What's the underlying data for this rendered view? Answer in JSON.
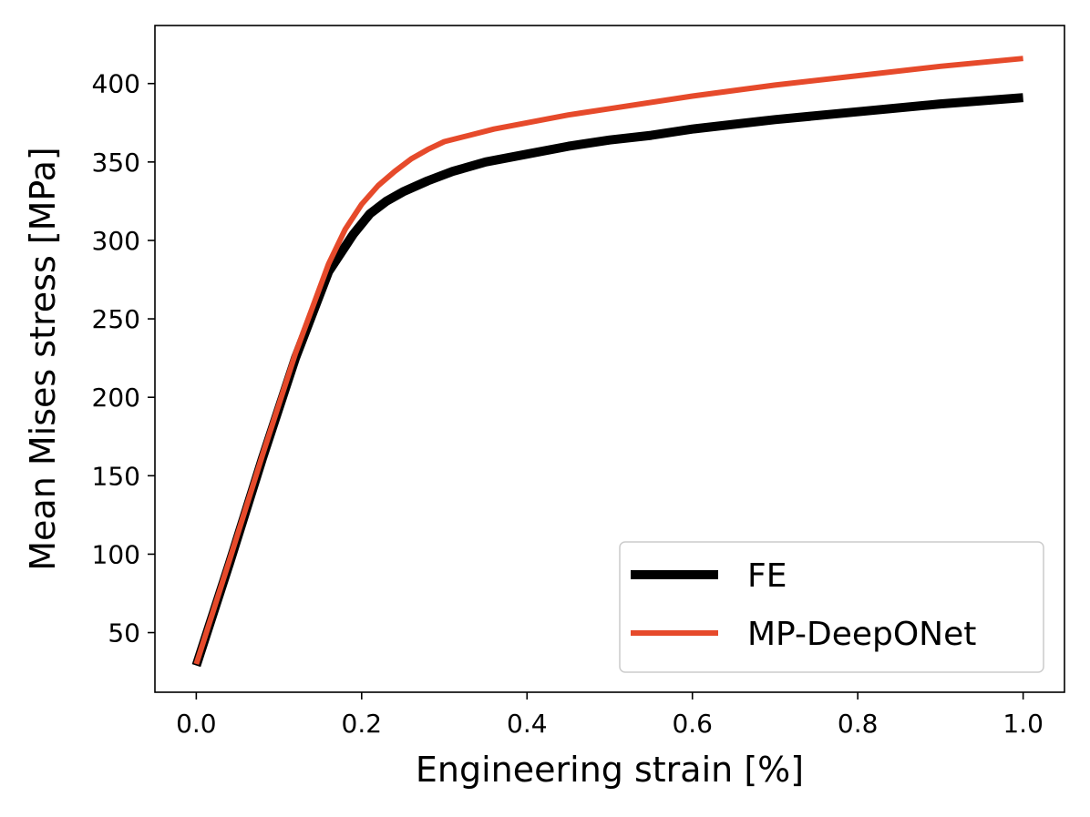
{
  "chart_data": {
    "type": "line",
    "title": "",
    "xlabel": "Engineering strain [%]",
    "ylabel": "Mean Mises stress [MPa]",
    "xlim": [
      -0.05,
      1.05
    ],
    "ylim": [
      12,
      437
    ],
    "xticks": [
      0.0,
      0.2,
      0.4,
      0.6,
      0.8,
      1.0
    ],
    "xtick_labels": [
      "0.0",
      "0.2",
      "0.4",
      "0.6",
      "0.8",
      "1.0"
    ],
    "yticks": [
      50,
      100,
      150,
      200,
      250,
      300,
      350,
      400
    ],
    "ytick_labels": [
      "50",
      "100",
      "150",
      "200",
      "250",
      "300",
      "350",
      "400"
    ],
    "grid": false,
    "legend_position": "bottom-right",
    "series": [
      {
        "name": "FE",
        "color": "#000000",
        "x": [
          0.0,
          0.04,
          0.08,
          0.12,
          0.16,
          0.19,
          0.21,
          0.23,
          0.25,
          0.28,
          0.31,
          0.35,
          0.4,
          0.45,
          0.5,
          0.55,
          0.6,
          0.7,
          0.8,
          0.9,
          1.0
        ],
        "y": [
          29,
          94,
          161,
          225,
          280,
          304,
          317,
          325,
          331,
          338,
          344,
          350,
          355,
          360,
          364,
          367,
          371,
          377,
          382,
          387,
          391
        ]
      },
      {
        "name": "MP-DeepONet",
        "color": "#E64A2B",
        "x": [
          0.0,
          0.04,
          0.08,
          0.12,
          0.16,
          0.18,
          0.2,
          0.22,
          0.24,
          0.26,
          0.28,
          0.3,
          0.33,
          0.36,
          0.4,
          0.45,
          0.5,
          0.6,
          0.7,
          0.8,
          0.9,
          1.0
        ],
        "y": [
          30,
          96,
          163,
          228,
          285,
          307,
          323,
          335,
          344,
          352,
          358,
          363,
          367,
          371,
          375,
          380,
          384,
          392,
          399,
          405,
          411,
          416
        ]
      }
    ]
  }
}
